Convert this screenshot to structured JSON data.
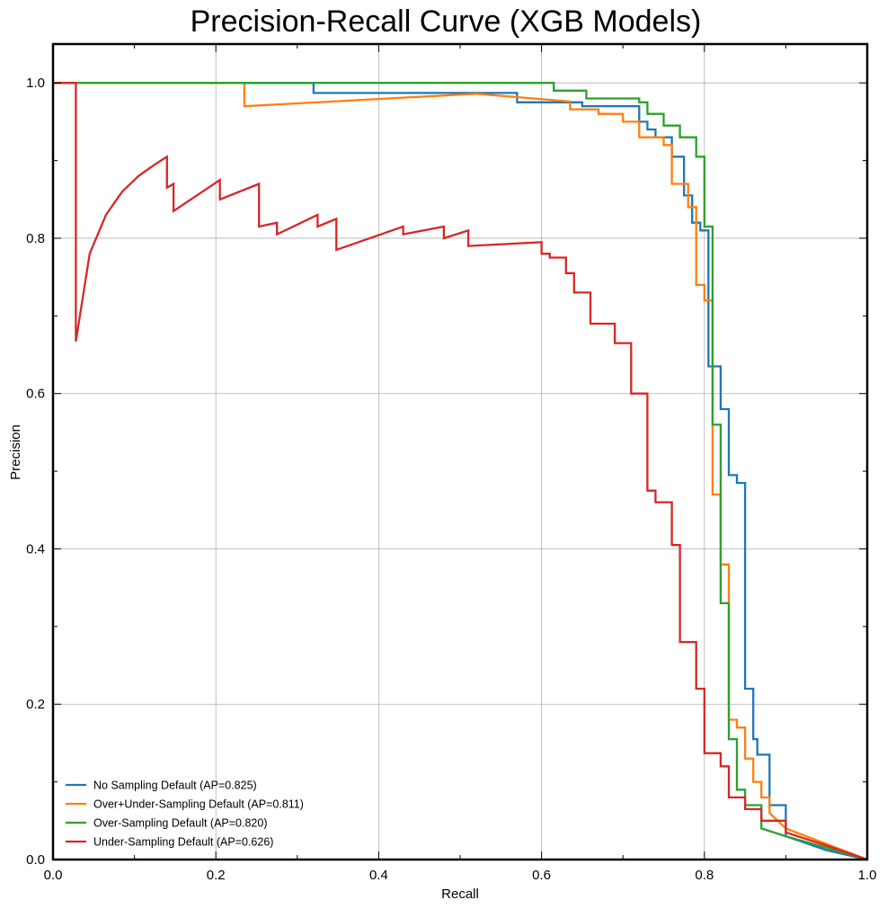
{
  "chart_data": {
    "type": "line",
    "title": "Precision-Recall Curve (XGB Models)",
    "xlabel": "Recall",
    "ylabel": "Precision",
    "xlim": [
      0,
      1
    ],
    "ylim": [
      0,
      1.05
    ],
    "xticks": [
      "0.0",
      "0.2",
      "0.4",
      "0.6",
      "0.8",
      "1.0"
    ],
    "yticks": [
      "0.0",
      "0.2",
      "0.4",
      "0.6",
      "0.8",
      "1.0"
    ],
    "grid": true,
    "legend_position": "lower-left",
    "series": [
      {
        "name": "No Sampling Default (AP=0.825)",
        "color": "#1f77b4",
        "x": [
          0,
          0.32,
          0.32,
          0.57,
          0.57,
          0.65,
          0.65,
          0.72,
          0.72,
          0.73,
          0.73,
          0.74,
          0.74,
          0.76,
          0.76,
          0.775,
          0.775,
          0.785,
          0.785,
          0.795,
          0.795,
          0.805,
          0.805,
          0.82,
          0.82,
          0.83,
          0.83,
          0.84,
          0.84,
          0.85,
          0.85,
          0.86,
          0.86,
          0.865,
          0.865,
          0.88,
          0.88,
          0.9,
          0.9,
          0.95,
          1.0
        ],
        "y": [
          1.0,
          1.0,
          0.987,
          0.987,
          0.975,
          0.975,
          0.97,
          0.97,
          0.95,
          0.95,
          0.94,
          0.94,
          0.93,
          0.93,
          0.905,
          0.905,
          0.855,
          0.855,
          0.82,
          0.82,
          0.81,
          0.81,
          0.635,
          0.635,
          0.58,
          0.58,
          0.495,
          0.495,
          0.485,
          0.485,
          0.22,
          0.22,
          0.155,
          0.155,
          0.135,
          0.135,
          0.07,
          0.07,
          0.03,
          0.012,
          0.0
        ]
      },
      {
        "name": "Over+Under-Sampling Default (AP=0.811)",
        "color": "#ff7f0e",
        "x": [
          0,
          0.235,
          0.235,
          0.52,
          0.635,
          0.635,
          0.67,
          0.67,
          0.7,
          0.7,
          0.72,
          0.72,
          0.75,
          0.75,
          0.76,
          0.76,
          0.78,
          0.78,
          0.79,
          0.79,
          0.8,
          0.8,
          0.81,
          0.81,
          0.82,
          0.82,
          0.83,
          0.83,
          0.84,
          0.84,
          0.85,
          0.85,
          0.86,
          0.86,
          0.87,
          0.87,
          0.88,
          0.88,
          0.9,
          0.95,
          1.0
        ],
        "y": [
          1.0,
          1.0,
          0.97,
          0.986,
          0.976,
          0.966,
          0.966,
          0.96,
          0.96,
          0.95,
          0.95,
          0.93,
          0.93,
          0.92,
          0.92,
          0.87,
          0.87,
          0.84,
          0.84,
          0.74,
          0.74,
          0.72,
          0.72,
          0.47,
          0.47,
          0.38,
          0.38,
          0.18,
          0.18,
          0.17,
          0.17,
          0.13,
          0.13,
          0.1,
          0.1,
          0.08,
          0.08,
          0.06,
          0.04,
          0.02,
          0.0
        ]
      },
      {
        "name": "Over-Sampling Default (AP=0.820)",
        "color": "#2ca02c",
        "x": [
          0,
          0.615,
          0.615,
          0.655,
          0.655,
          0.72,
          0.72,
          0.73,
          0.73,
          0.75,
          0.75,
          0.77,
          0.77,
          0.79,
          0.79,
          0.8,
          0.8,
          0.81,
          0.81,
          0.82,
          0.82,
          0.83,
          0.83,
          0.84,
          0.84,
          0.85,
          0.85,
          0.87,
          0.87,
          0.9,
          0.95,
          1.0
        ],
        "y": [
          1.0,
          1.0,
          0.99,
          0.99,
          0.98,
          0.98,
          0.975,
          0.975,
          0.96,
          0.96,
          0.945,
          0.945,
          0.93,
          0.93,
          0.905,
          0.905,
          0.815,
          0.815,
          0.56,
          0.56,
          0.33,
          0.33,
          0.155,
          0.155,
          0.09,
          0.09,
          0.07,
          0.07,
          0.04,
          0.03,
          0.015,
          0.0
        ]
      },
      {
        "name": "Under-Sampling Default (AP=0.626)",
        "color": "#d62728",
        "x": [
          0,
          0.028,
          0.028,
          0.045,
          0.065,
          0.085,
          0.105,
          0.125,
          0.14,
          0.14,
          0.148,
          0.148,
          0.205,
          0.205,
          0.253,
          0.253,
          0.275,
          0.275,
          0.325,
          0.325,
          0.348,
          0.348,
          0.43,
          0.43,
          0.48,
          0.48,
          0.51,
          0.51,
          0.6,
          0.6,
          0.61,
          0.61,
          0.63,
          0.63,
          0.64,
          0.64,
          0.66,
          0.66,
          0.69,
          0.69,
          0.71,
          0.71,
          0.73,
          0.73,
          0.74,
          0.74,
          0.76,
          0.76,
          0.77,
          0.77,
          0.79,
          0.79,
          0.8,
          0.8,
          0.82,
          0.82,
          0.83,
          0.83,
          0.85,
          0.85,
          0.87,
          0.87,
          0.9,
          0.9,
          0.95,
          1.0
        ],
        "y": [
          1.0,
          1.0,
          0.667,
          0.78,
          0.83,
          0.86,
          0.88,
          0.895,
          0.905,
          0.865,
          0.87,
          0.835,
          0.875,
          0.85,
          0.87,
          0.815,
          0.82,
          0.805,
          0.83,
          0.815,
          0.825,
          0.785,
          0.815,
          0.805,
          0.815,
          0.8,
          0.81,
          0.79,
          0.795,
          0.78,
          0.78,
          0.775,
          0.775,
          0.755,
          0.755,
          0.73,
          0.73,
          0.69,
          0.69,
          0.665,
          0.665,
          0.6,
          0.6,
          0.475,
          0.475,
          0.46,
          0.46,
          0.405,
          0.405,
          0.28,
          0.28,
          0.22,
          0.22,
          0.137,
          0.137,
          0.12,
          0.12,
          0.08,
          0.08,
          0.065,
          0.065,
          0.05,
          0.05,
          0.035,
          0.018,
          0.0
        ]
      }
    ]
  }
}
